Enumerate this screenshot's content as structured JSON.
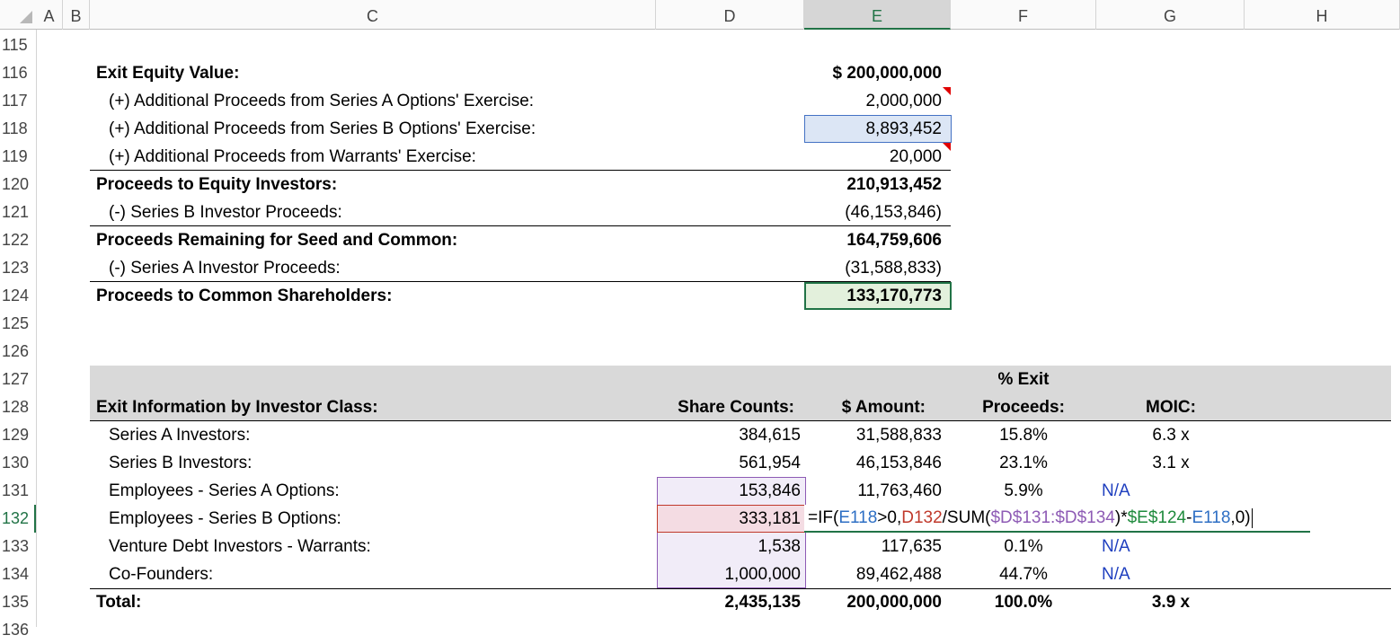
{
  "columns": [
    "A",
    "B",
    "C",
    "D",
    "E",
    "F",
    "G",
    "H"
  ],
  "rows": [
    {
      "number": 115
    },
    {
      "number": 116,
      "C": "Exit Equity Value:",
      "E": "$ 200,000,000"
    },
    {
      "number": 117,
      "C": "(+) Additional Proceeds from Series A Options' Exercise:",
      "E": "2,000,000"
    },
    {
      "number": 118,
      "C": "(+) Additional Proceeds from Series B Options' Exercise:",
      "E": "8,893,452"
    },
    {
      "number": 119,
      "C": "(+) Additional Proceeds from Warrants' Exercise:",
      "E": "20,000"
    },
    {
      "number": 120,
      "C": "Proceeds to Equity Investors:",
      "E": "210,913,452"
    },
    {
      "number": 121,
      "C": "(-) Series B Investor Proceeds:",
      "E": "(46,153,846)"
    },
    {
      "number": 122,
      "C": "Proceeds Remaining for Seed and Common:",
      "E": "164,759,606"
    },
    {
      "number": 123,
      "C": "(-) Series A Investor Proceeds:",
      "E": "(31,588,833)"
    },
    {
      "number": 124,
      "C": "Proceeds to Common Shareholders:",
      "E": "133,170,773"
    },
    {
      "number": 125
    },
    {
      "number": 126
    },
    {
      "number": 127,
      "F": "% Exit"
    },
    {
      "number": 128,
      "C": "Exit Information by Investor Class:",
      "D": "Share Counts:",
      "E": "$ Amount:",
      "F": "Proceeds:",
      "G": "MOIC:"
    },
    {
      "number": 129,
      "C": "Series A Investors:",
      "D": "384,615",
      "E": "31,588,833",
      "F": "15.8%",
      "G": "6.3 x"
    },
    {
      "number": 130,
      "C": "Series B Investors:",
      "D": "561,954",
      "E": "46,153,846",
      "F": "23.1%",
      "G": "3.1 x"
    },
    {
      "number": 131,
      "C": "Employees - Series A Options:",
      "D": "153,846",
      "E": "11,763,460",
      "F": "5.9%",
      "G": "N/A"
    },
    {
      "number": 132,
      "C": "Employees - Series B Options:",
      "D": "333,181",
      "E": [
        {
          "text": "=IF(",
          "color": "#000000"
        },
        {
          "text": "E118",
          "color": "#2e6fc4"
        },
        {
          "text": ">0,",
          "color": "#000000"
        },
        {
          "text": "D132",
          "color": "#c0392b"
        },
        {
          "text": "/SUM(",
          "color": "#000000"
        },
        {
          "text": "$D$131:$D$134",
          "color": "#8e5bb5"
        },
        {
          "text": ")*",
          "color": "#000000"
        },
        {
          "text": "$E$124",
          "color": "#1e8a3c"
        },
        {
          "text": "-",
          "color": "#000000"
        },
        {
          "text": "E118",
          "color": "#2e6fc4"
        },
        {
          "text": ",0)",
          "color": "#000000"
        }
      ]
    },
    {
      "number": 133,
      "C": "Venture Debt Investors - Warrants:",
      "D": "1,538",
      "E": "117,635",
      "F": "0.1%",
      "G": "N/A"
    },
    {
      "number": 134,
      "C": "Co-Founders:",
      "D": "1,000,000",
      "E": "89,462,488",
      "F": "44.7%",
      "G": "N/A"
    },
    {
      "number": 135,
      "C": "Total:",
      "D": "2,435,135",
      "E": "200,000,000",
      "F": "100.0%",
      "G": "3.9 x"
    },
    {
      "number": 136
    }
  ]
}
